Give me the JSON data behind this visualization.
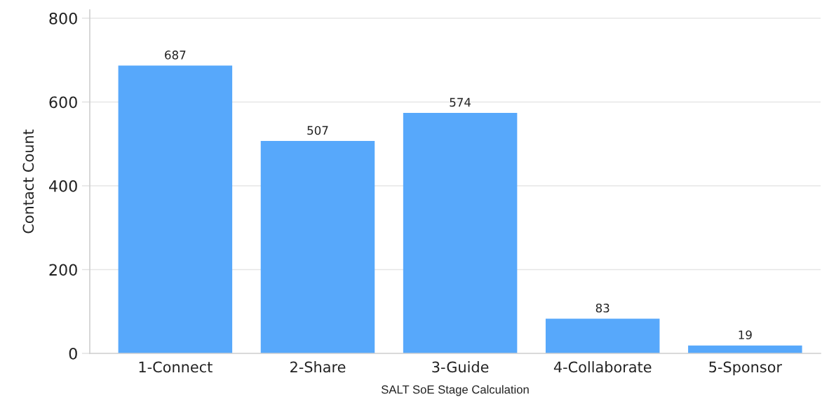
{
  "chart_data": {
    "type": "bar",
    "xlabel": "SALT SoE Stage Calculation",
    "ylabel": "Contact Count",
    "categories": [
      "1-Connect",
      "2-Share",
      "3-Guide",
      "4-Collaborate",
      "5-Sponsor"
    ],
    "values": [
      687,
      507,
      574,
      83,
      19
    ],
    "color": "#57a8fb",
    "ylim": [
      0,
      820
    ],
    "yticks": [
      0,
      200,
      400,
      600,
      800
    ],
    "grid": "y",
    "data_labels": true
  }
}
